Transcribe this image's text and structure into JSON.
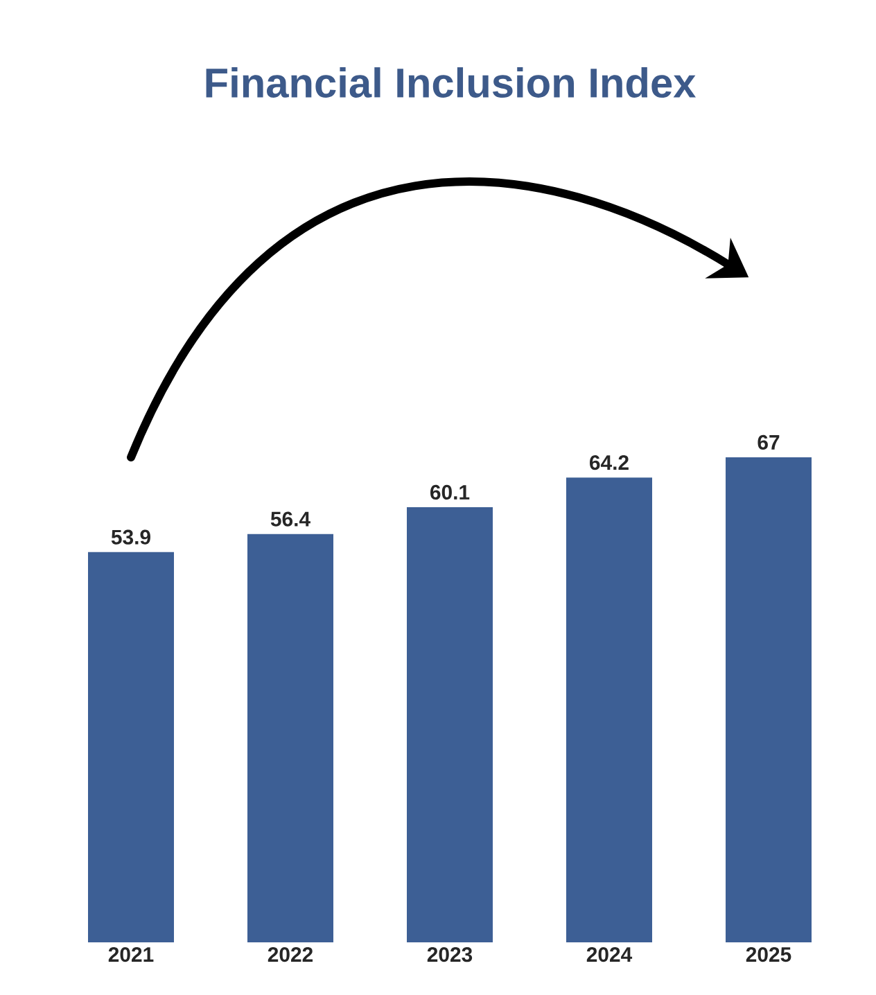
{
  "chart_data": {
    "type": "bar",
    "title": "Financial Inclusion Index",
    "categories": [
      "2021",
      "2022",
      "2023",
      "2024",
      "2025"
    ],
    "values": [
      53.9,
      56.4,
      60.1,
      64.2,
      67
    ],
    "color": "#3d5f95",
    "data_labels": true
  }
}
